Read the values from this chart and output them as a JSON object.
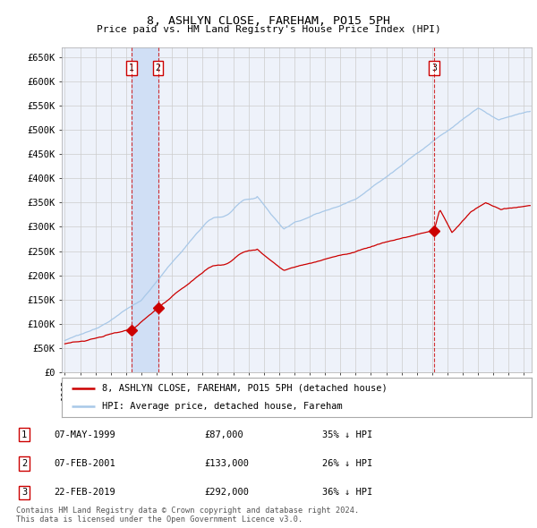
{
  "title": "8, ASHLYN CLOSE, FAREHAM, PO15 5PH",
  "subtitle": "Price paid vs. HM Land Registry's House Price Index (HPI)",
  "legend_line1": "8, ASHLYN CLOSE, FAREHAM, PO15 5PH (detached house)",
  "legend_line2": "HPI: Average price, detached house, Fareham",
  "footer1": "Contains HM Land Registry data © Crown copyright and database right 2024.",
  "footer2": "This data is licensed under the Open Government Licence v3.0.",
  "transactions": [
    {
      "num": 1,
      "date": "07-MAY-1999",
      "price": 87000,
      "pct": "35%",
      "dir": "↓"
    },
    {
      "num": 2,
      "date": "07-FEB-2001",
      "price": 133000,
      "pct": "26%",
      "dir": "↓"
    },
    {
      "num": 3,
      "date": "22-FEB-2019",
      "price": 292000,
      "pct": "36%",
      "dir": "↓"
    }
  ],
  "transaction_dates_decimal": [
    1999.36,
    2001.09,
    2019.13
  ],
  "transaction_prices": [
    87000,
    133000,
    292000
  ],
  "vline_dates": [
    1999.36,
    2001.09,
    2019.13
  ],
  "vline_shade_start": 1999.36,
  "vline_shade_end": 2001.09,
  "hpi_color": "#a8c8e8",
  "price_color": "#cc0000",
  "vline_color": "#cc0000",
  "grid_color": "#cccccc",
  "bg_color": "#ffffff",
  "plot_bg_color": "#eef2fa",
  "shade_color": "#d0dff5",
  "ylim": [
    0,
    670000
  ],
  "yticks": [
    0,
    50000,
    100000,
    150000,
    200000,
    250000,
    300000,
    350000,
    400000,
    450000,
    500000,
    550000,
    600000,
    650000
  ],
  "xlim_start": 1994.8,
  "xlim_end": 2025.5,
  "xticks": [
    1995,
    1996,
    1997,
    1998,
    1999,
    2000,
    2001,
    2002,
    2003,
    2004,
    2005,
    2006,
    2007,
    2008,
    2009,
    2010,
    2011,
    2012,
    2013,
    2014,
    2015,
    2016,
    2017,
    2018,
    2019,
    2020,
    2021,
    2022,
    2023,
    2024,
    2025
  ]
}
